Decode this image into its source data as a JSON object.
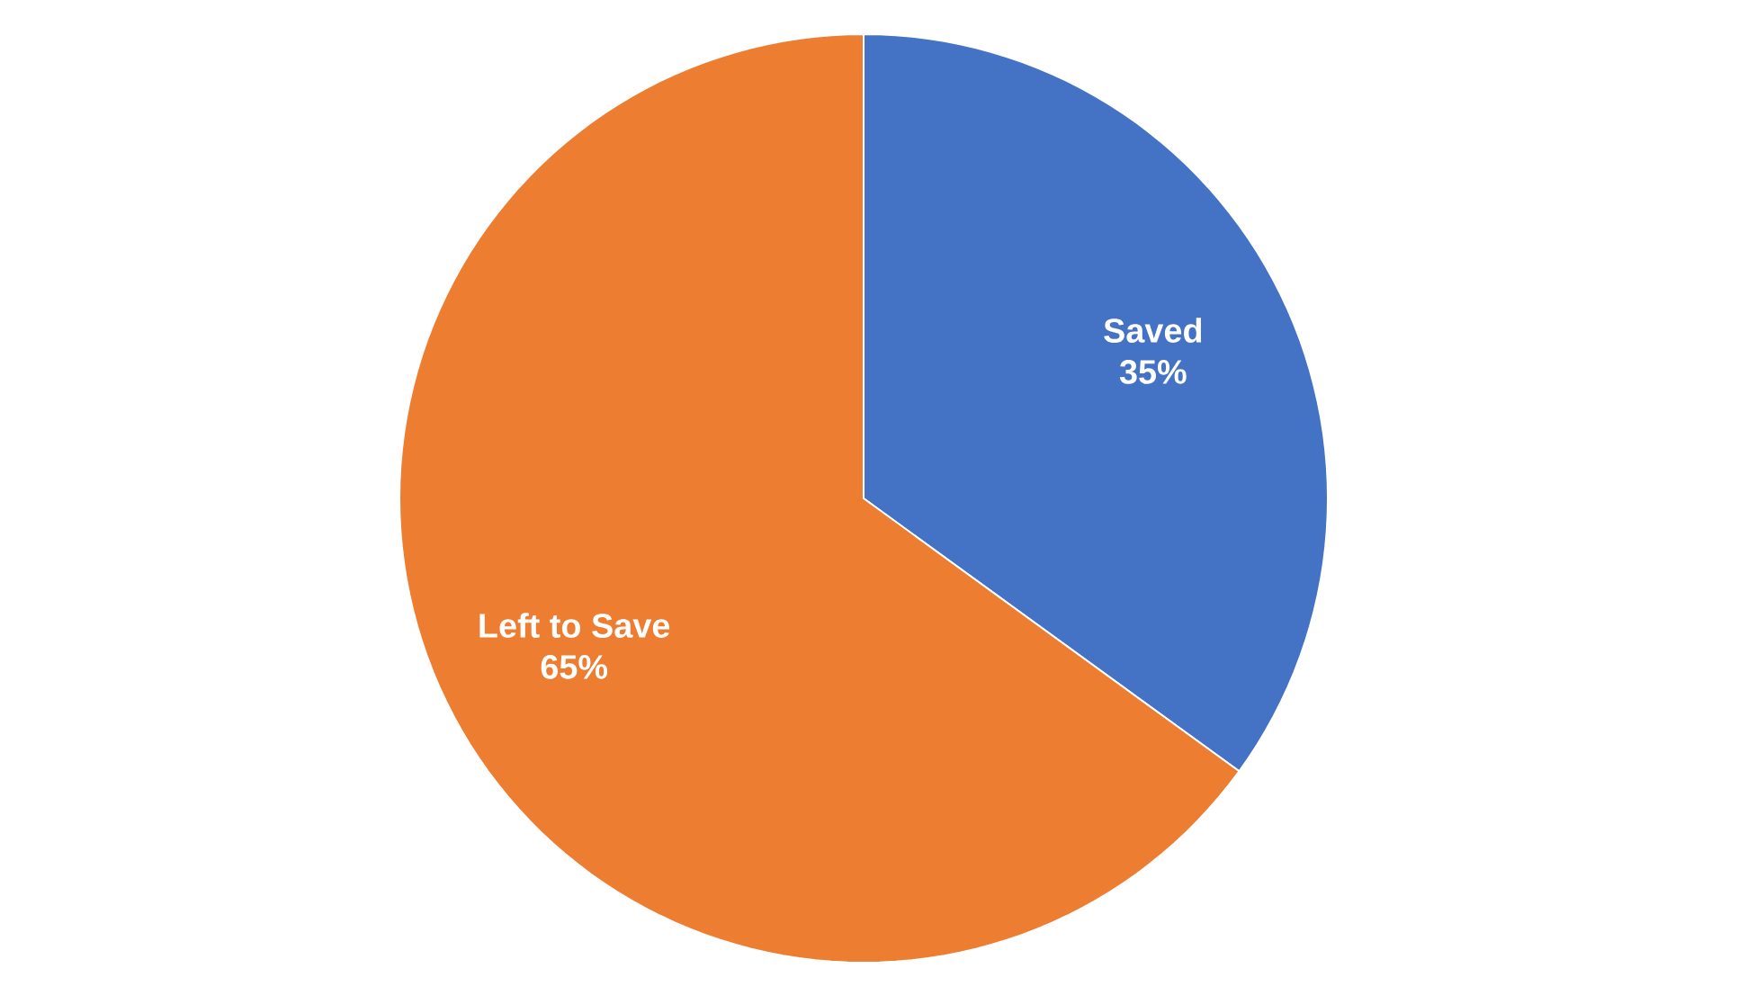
{
  "chart_data": {
    "type": "pie",
    "categories": [
      "Saved",
      "Left to Save"
    ],
    "values": [
      35,
      65
    ],
    "colors": [
      "#4472c4",
      "#ed7d31"
    ],
    "value_labels": [
      "35%",
      "65%"
    ]
  }
}
